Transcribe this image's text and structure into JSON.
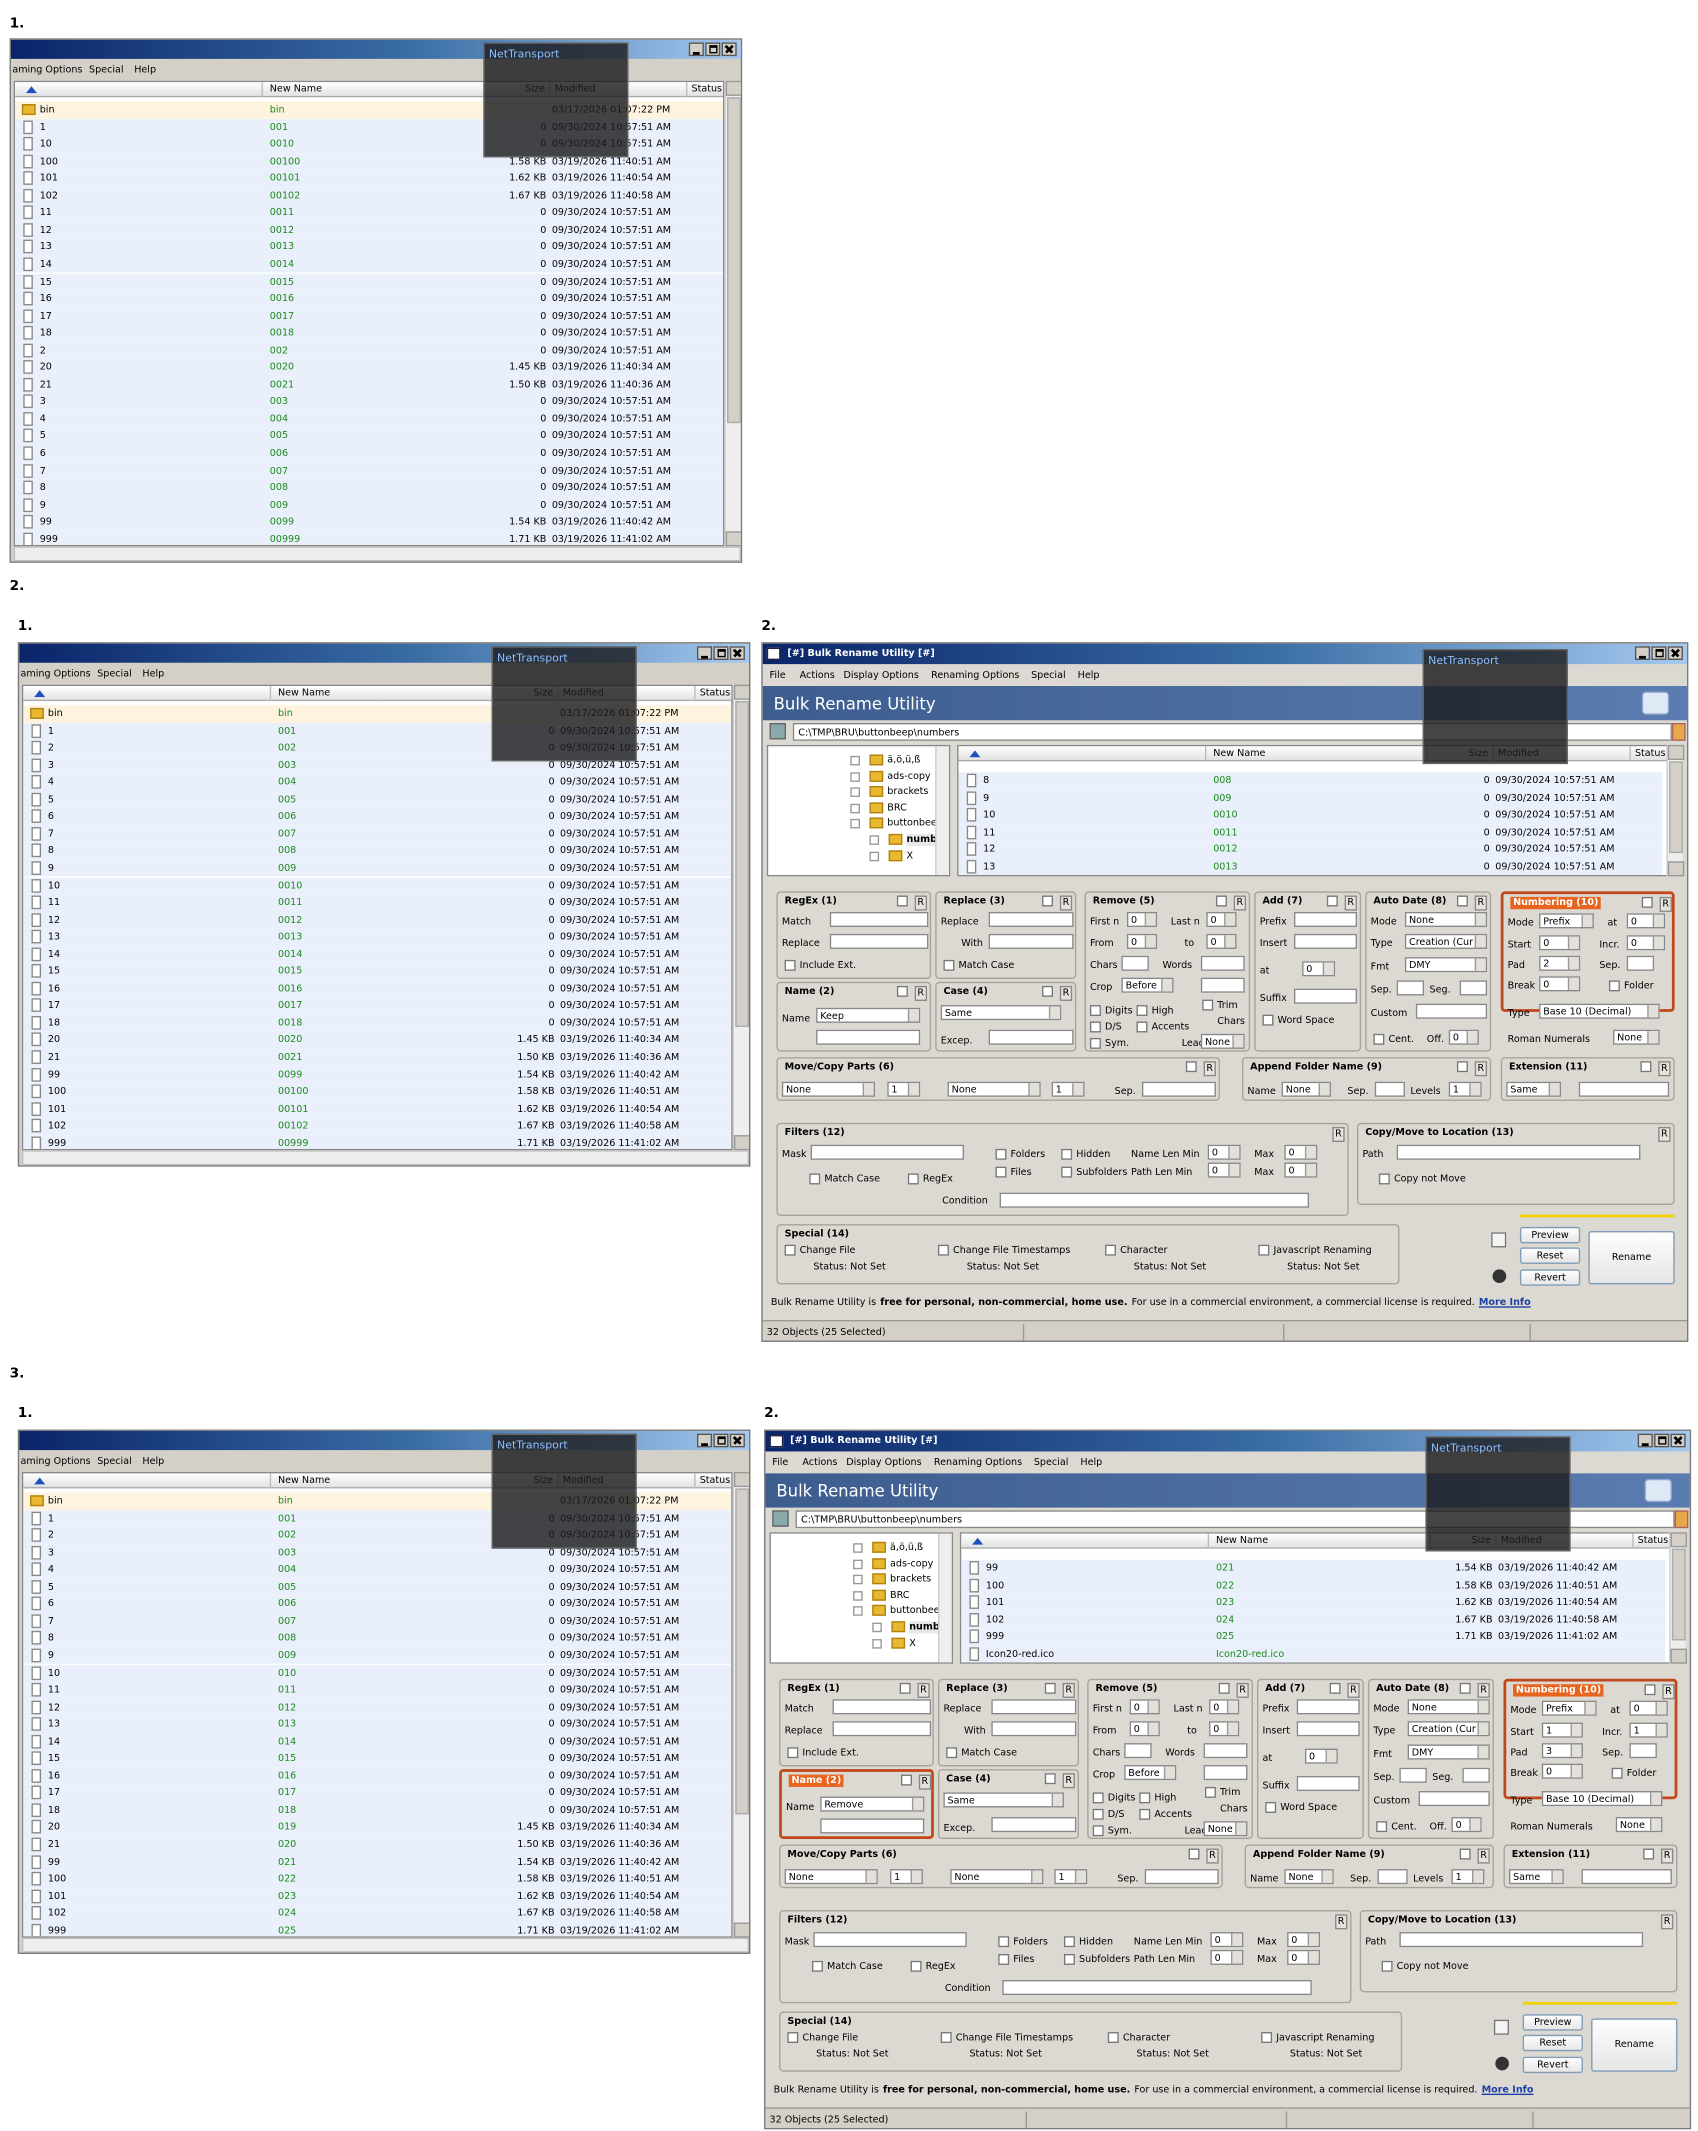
{
  "file_window": {
    "menu": [
      "aming Options",
      "Special",
      "Help"
    ],
    "overlay": "NetTransport",
    "columns": [
      "New Name",
      "Size",
      "Modified",
      "Status"
    ]
  },
  "bru_common": {
    "title": "[#] Bulk Rename Utility [#]",
    "menu": [
      "File",
      "Actions",
      "Display Options",
      "Renaming Options",
      "Special",
      "Help"
    ],
    "banner": "Bulk Rename Utility",
    "path": "C:\\TMP\\BRU\\buttonbeep\\numbers",
    "tree": [
      "ä,ö,ü,ß",
      "ads-copy",
      "brackets",
      "BRC",
      "buttonbee",
      "numb",
      "X"
    ],
    "reset_label": "R",
    "panels": [
      {
        "title": "RegEx (1)",
        "labels": [
          "Match",
          "Replace",
          "Include Ext."
        ]
      },
      {
        "title": "Name (2)",
        "labels": [
          "Name"
        ]
      },
      {
        "title": "Replace (3)",
        "labels": [
          "Replace",
          "With",
          "Match Case"
        ]
      },
      {
        "title": "Case (4)",
        "labels": [
          "Excep."
        ]
      },
      {
        "title": "Remove (5)",
        "labels": [
          "First n",
          "Last n",
          "From",
          "to",
          "Chars",
          "Words",
          "Crop",
          "Digits",
          "High",
          "Trim",
          "D/S",
          "Accents",
          "Chars",
          "Sym.",
          "Lead Dots"
        ]
      },
      {
        "title": "Add (7)",
        "labels": [
          "Prefix",
          "Insert",
          "at",
          "Suffix",
          "Word Space"
        ]
      },
      {
        "title": "Auto Date (8)",
        "labels": [
          "Mode",
          "Type",
          "Fmt",
          "Sep.",
          "Seg.",
          "Custom",
          "Cent.",
          "Off."
        ]
      },
      {
        "title": "Numbering (10)",
        "labels": [
          "Mode",
          "at",
          "Start",
          "Incr.",
          "Pad",
          "Sep.",
          "Break",
          "Folder",
          "Type",
          "Roman Numerals"
        ]
      },
      {
        "title": "Move/Copy Parts (6)",
        "labels": [
          "Sep."
        ]
      },
      {
        "title": "Append Folder Name (9)",
        "labels": [
          "Name",
          "Sep.",
          "Levels"
        ]
      },
      {
        "title": "Extension (11)",
        "labels": []
      },
      {
        "title": "Filters (12)",
        "labels": [
          "Mask",
          "Match Case",
          "RegEx",
          "Folders",
          "Hidden",
          "Name Len Min",
          "Max",
          "Files",
          "Subfolders",
          "Path Len Min",
          "Max",
          "Condition"
        ]
      },
      {
        "title": "Copy/Move to Location (13)",
        "labels": [
          "Path",
          "Copy not Move"
        ]
      },
      {
        "title": "Special (14)",
        "labels": [
          "Change File",
          "Status: Not Set",
          "Change File Timestamps",
          "Status: Not Set",
          "Character",
          "Status: Not Set",
          "Javascript Renaming",
          "Status: Not Set"
        ]
      }
    ],
    "buttons": [
      "Preview",
      "Reset",
      "Revert",
      "Rename"
    ],
    "footer": [
      "Bulk Rename Utility is",
      "free for personal, non-commercial, home use.",
      "For use in a commercial environment, a commercial license is required.",
      "More Info"
    ],
    "status": "32 Objects (25 Selected)"
  },
  "sections": [
    {
      "label": "1.",
      "file_window": {
        "rows": [
          [
            "bin",
            "bin",
            null,
            "03/17/2026 01:07:22 PM"
          ],
          [
            "1",
            "001",
            "0",
            "09/30/2024 10:57:51 AM"
          ],
          [
            "10",
            "0010",
            "0",
            "09/30/2024 10:57:51 AM"
          ],
          [
            "100",
            "00100",
            "1.58 KB",
            "03/19/2026 11:40:51 AM"
          ],
          [
            "101",
            "00101",
            "1.62 KB",
            "03/19/2026 11:40:54 AM"
          ],
          [
            "102",
            "00102",
            "1.67 KB",
            "03/19/2026 11:40:58 AM"
          ],
          [
            "11",
            "0011",
            "0",
            "09/30/2024 10:57:51 AM"
          ],
          [
            "12",
            "0012",
            "0",
            "09/30/2024 10:57:51 AM"
          ],
          [
            "13",
            "0013",
            "0",
            "09/30/2024 10:57:51 AM"
          ],
          [
            "14",
            "0014",
            "0",
            "09/30/2024 10:57:51 AM"
          ],
          [
            "15",
            "0015",
            "0",
            "09/30/2024 10:57:51 AM"
          ],
          [
            "16",
            "0016",
            "0",
            "09/30/2024 10:57:51 AM"
          ],
          [
            "17",
            "0017",
            "0",
            "09/30/2024 10:57:51 AM"
          ],
          [
            "18",
            "0018",
            "0",
            "09/30/2024 10:57:51 AM"
          ],
          [
            "2",
            "002",
            "0",
            "09/30/2024 10:57:51 AM"
          ],
          [
            "20",
            "0020",
            "1.45 KB",
            "03/19/2026 11:40:34 AM"
          ],
          [
            "21",
            "0021",
            "1.50 KB",
            "03/19/2026 11:40:36 AM"
          ],
          [
            "3",
            "003",
            "0",
            "09/30/2024 10:57:51 AM"
          ],
          [
            "4",
            "004",
            "0",
            "09/30/2024 10:57:51 AM"
          ],
          [
            "5",
            "005",
            "0",
            "09/30/2024 10:57:51 AM"
          ],
          [
            "6",
            "006",
            "0",
            "09/30/2024 10:57:51 AM"
          ],
          [
            "7",
            "007",
            "0",
            "09/30/2024 10:57:51 AM"
          ],
          [
            "8",
            "008",
            "0",
            "09/30/2024 10:57:51 AM"
          ],
          [
            "9",
            "009",
            "0",
            "09/30/2024 10:57:51 AM"
          ],
          [
            "99",
            "0099",
            "1.54 KB",
            "03/19/2026 11:40:42 AM"
          ],
          [
            "999",
            "00999",
            "1.71 KB",
            "03/19/2026 11:41:02 AM"
          ]
        ]
      }
    },
    {
      "label": "2.",
      "file_window": {
        "label": "1.",
        "rows": [
          [
            "bin",
            "bin",
            null,
            "03/17/2026 01:07:22 PM"
          ],
          [
            "1",
            "001",
            "0",
            "09/30/2024 10:57:51 AM"
          ],
          [
            "2",
            "002",
            "0",
            "09/30/2024 10:57:51 AM"
          ],
          [
            "3",
            "003",
            "0",
            "09/30/2024 10:57:51 AM"
          ],
          [
            "4",
            "004",
            "0",
            "09/30/2024 10:57:51 AM"
          ],
          [
            "5",
            "005",
            "0",
            "09/30/2024 10:57:51 AM"
          ],
          [
            "6",
            "006",
            "0",
            "09/30/2024 10:57:51 AM"
          ],
          [
            "7",
            "007",
            "0",
            "09/30/2024 10:57:51 AM"
          ],
          [
            "8",
            "008",
            "0",
            "09/30/2024 10:57:51 AM"
          ],
          [
            "9",
            "009",
            "0",
            "09/30/2024 10:57:51 AM"
          ],
          [
            "10",
            "0010",
            "0",
            "09/30/2024 10:57:51 AM"
          ],
          [
            "11",
            "0011",
            "0",
            "09/30/2024 10:57:51 AM"
          ],
          [
            "12",
            "0012",
            "0",
            "09/30/2024 10:57:51 AM"
          ],
          [
            "13",
            "0013",
            "0",
            "09/30/2024 10:57:51 AM"
          ],
          [
            "14",
            "0014",
            "0",
            "09/30/2024 10:57:51 AM"
          ],
          [
            "15",
            "0015",
            "0",
            "09/30/2024 10:57:51 AM"
          ],
          [
            "16",
            "0016",
            "0",
            "09/30/2024 10:57:51 AM"
          ],
          [
            "17",
            "0017",
            "0",
            "09/30/2024 10:57:51 AM"
          ],
          [
            "18",
            "0018",
            "0",
            "09/30/2024 10:57:51 AM"
          ],
          [
            "20",
            "0020",
            "1.45 KB",
            "03/19/2026 11:40:34 AM"
          ],
          [
            "21",
            "0021",
            "1.50 KB",
            "03/19/2026 11:40:36 AM"
          ],
          [
            "99",
            "0099",
            "1.54 KB",
            "03/19/2026 11:40:42 AM"
          ],
          [
            "100",
            "00100",
            "1.58 KB",
            "03/19/2026 11:40:51 AM"
          ],
          [
            "101",
            "00101",
            "1.62 KB",
            "03/19/2026 11:40:54 AM"
          ],
          [
            "102",
            "00102",
            "1.67 KB",
            "03/19/2026 11:40:58 AM"
          ],
          [
            "999",
            "00999",
            "1.71 KB",
            "03/19/2026 11:41:02 AM"
          ]
        ]
      },
      "bru": {
        "label": "2.",
        "rows": [
          [
            "8",
            "008",
            "0",
            "09/30/2024 10:57:51 AM"
          ],
          [
            "9",
            "009",
            "0",
            "09/30/2024 10:57:51 AM"
          ],
          [
            "10",
            "0010",
            "0",
            "09/30/2024 10:57:51 AM"
          ],
          [
            "11",
            "0011",
            "0",
            "09/30/2024 10:57:51 AM"
          ],
          [
            "12",
            "0012",
            "0",
            "09/30/2024 10:57:51 AM"
          ],
          [
            "13",
            "0013",
            "0",
            "09/30/2024 10:57:51 AM"
          ]
        ],
        "panels": [
          {
            "values": []
          },
          {
            "values": [
              "Keep"
            ]
          },
          {
            "values": []
          },
          {
            "values": [
              "Same"
            ]
          },
          {
            "values": [
              "0",
              "0",
              "0",
              "0",
              "Before",
              "None"
            ]
          },
          {
            "values": [
              "0"
            ]
          },
          {
            "values": [
              "None",
              "Creation (Cur",
              "DMY",
              "0"
            ]
          },
          {
            "values": [
              "Prefix",
              "0",
              "0",
              "0",
              "2",
              "0",
              "Base 10 (Decimal)",
              "None"
            ],
            "highlighted": true
          },
          {
            "values": [
              "None",
              "1",
              "None",
              "1"
            ]
          },
          {
            "values": [
              "None",
              "1"
            ]
          },
          {
            "values": [
              "Same"
            ]
          },
          {
            "values": [
              "0",
              "0",
              "0",
              "0"
            ]
          },
          {
            "values": []
          },
          {
            "values": []
          }
        ]
      }
    },
    {
      "label": "3.",
      "file_window": {
        "label": "1.",
        "rows": [
          [
            "bin",
            "bin",
            null,
            "03/17/2026 01:07:22 PM"
          ],
          [
            "1",
            "001",
            "0",
            "09/30/2024 10:57:51 AM"
          ],
          [
            "2",
            "002",
            "0",
            "09/30/2024 10:57:51 AM"
          ],
          [
            "3",
            "003",
            "0",
            "09/30/2024 10:57:51 AM"
          ],
          [
            "4",
            "004",
            "0",
            "09/30/2024 10:57:51 AM"
          ],
          [
            "5",
            "005",
            "0",
            "09/30/2024 10:57:51 AM"
          ],
          [
            "6",
            "006",
            "0",
            "09/30/2024 10:57:51 AM"
          ],
          [
            "7",
            "007",
            "0",
            "09/30/2024 10:57:51 AM"
          ],
          [
            "8",
            "008",
            "0",
            "09/30/2024 10:57:51 AM"
          ],
          [
            "9",
            "009",
            "0",
            "09/30/2024 10:57:51 AM"
          ],
          [
            "10",
            "010",
            "0",
            "09/30/2024 10:57:51 AM"
          ],
          [
            "11",
            "011",
            "0",
            "09/30/2024 10:57:51 AM"
          ],
          [
            "12",
            "012",
            "0",
            "09/30/2024 10:57:51 AM"
          ],
          [
            "13",
            "013",
            "0",
            "09/30/2024 10:57:51 AM"
          ],
          [
            "14",
            "014",
            "0",
            "09/30/2024 10:57:51 AM"
          ],
          [
            "15",
            "015",
            "0",
            "09/30/2024 10:57:51 AM"
          ],
          [
            "16",
            "016",
            "0",
            "09/30/2024 10:57:51 AM"
          ],
          [
            "17",
            "017",
            "0",
            "09/30/2024 10:57:51 AM"
          ],
          [
            "18",
            "018",
            "0",
            "09/30/2024 10:57:51 AM"
          ],
          [
            "20",
            "019",
            "1.45 KB",
            "03/19/2026 11:40:34 AM"
          ],
          [
            "21",
            "020",
            "1.50 KB",
            "03/19/2026 11:40:36 AM"
          ],
          [
            "99",
            "021",
            "1.54 KB",
            "03/19/2026 11:40:42 AM"
          ],
          [
            "100",
            "022",
            "1.58 KB",
            "03/19/2026 11:40:51 AM"
          ],
          [
            "101",
            "023",
            "1.62 KB",
            "03/19/2026 11:40:54 AM"
          ],
          [
            "102",
            "024",
            "1.67 KB",
            "03/19/2026 11:40:58 AM"
          ],
          [
            "999",
            "025",
            "1.71 KB",
            "03/19/2026 11:41:02 AM"
          ]
        ]
      },
      "bru": {
        "label": "2.",
        "rows": [
          [
            "99",
            "021",
            "1.54 KB",
            "03/19/2026 11:40:42 AM"
          ],
          [
            "100",
            "022",
            "1.58 KB",
            "03/19/2026 11:40:51 AM"
          ],
          [
            "101",
            "023",
            "1.62 KB",
            "03/19/2026 11:40:54 AM"
          ],
          [
            "102",
            "024",
            "1.67 KB",
            "03/19/2026 11:40:58 AM"
          ],
          [
            "999",
            "025",
            "1.71 KB",
            "03/19/2026 11:41:02 AM"
          ],
          [
            "Icon20-red.ico",
            "Icon20-red.ico",
            null,
            null
          ]
        ],
        "panels": [
          {
            "values": []
          },
          {
            "values": [
              "Remove"
            ],
            "highlighted": true
          },
          {
            "values": []
          },
          {
            "values": [
              "Same"
            ]
          },
          {
            "values": [
              "0",
              "0",
              "0",
              "0",
              "Before",
              "None"
            ]
          },
          {
            "values": [
              "0"
            ]
          },
          {
            "values": [
              "None",
              "Creation (Cur",
              "DMY",
              "0"
            ]
          },
          {
            "values": [
              "Prefix",
              "0",
              "1",
              "1",
              "3",
              "0",
              "Base 10 (Decimal)",
              "None"
            ],
            "highlighted": true
          },
          {
            "values": [
              "None",
              "1",
              "None",
              "1"
            ]
          },
          {
            "values": [
              "None",
              "1"
            ]
          },
          {
            "values": [
              "Same"
            ]
          },
          {
            "values": [
              "0",
              "0",
              "0",
              "0"
            ]
          },
          {
            "values": []
          },
          {
            "values": []
          }
        ]
      }
    }
  ]
}
